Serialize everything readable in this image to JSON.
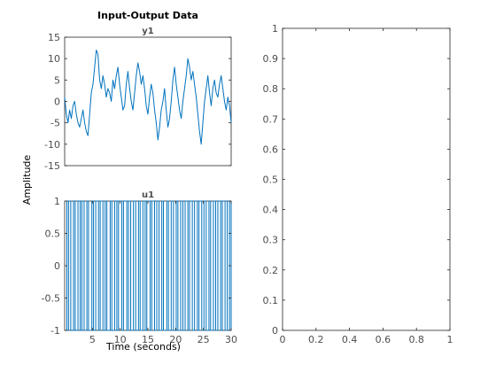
{
  "figure": {
    "title": "Input-Output Data",
    "ylabel": "Amplitude",
    "xlabel": "Time (seconds)"
  },
  "chart_data": [
    {
      "type": "line",
      "title": "y1",
      "xlim": [
        0,
        30
      ],
      "ylim": [
        -15,
        15
      ],
      "yticks": [
        -15,
        -10,
        -5,
        0,
        5,
        10,
        15
      ],
      "color": "#0072bd",
      "series": [
        {
          "x": [
            0,
            0.3,
            0.6,
            0.9,
            1.2,
            1.5,
            1.8,
            2.1,
            2.4,
            2.7,
            3.0,
            3.3,
            3.6,
            3.9,
            4.2,
            4.5,
            4.8,
            5.1,
            5.4,
            5.7,
            6.0,
            6.3,
            6.6,
            6.9,
            7.2,
            7.5,
            7.8,
            8.1,
            8.4,
            8.7,
            9.0,
            9.3,
            9.6,
            9.9,
            10.2,
            10.5,
            10.8,
            11.1,
            11.4,
            11.7,
            12.0,
            12.3,
            12.6,
            12.9,
            13.2,
            13.5,
            13.8,
            14.1,
            14.4,
            14.7,
            15.0,
            15.3,
            15.6,
            15.9,
            16.2,
            16.5,
            16.8,
            17.1,
            17.4,
            17.7,
            18.0,
            18.3,
            18.6,
            18.9,
            19.2,
            19.5,
            19.8,
            20.1,
            20.4,
            20.7,
            21.0,
            21.3,
            21.6,
            21.9,
            22.2,
            22.5,
            22.8,
            23.1,
            23.4,
            23.7,
            24.0,
            24.3,
            24.6,
            24.9,
            25.2,
            25.5,
            25.8,
            26.1,
            26.4,
            26.7,
            27.0,
            27.3,
            27.6,
            27.9,
            28.2,
            28.5,
            28.8,
            29.1,
            29.4,
            29.7,
            30.0
          ],
          "y": [
            1,
            -3,
            -5,
            -2,
            -4,
            -1,
            0,
            -3,
            -5,
            -6,
            -4,
            -2,
            -5,
            -7,
            -8,
            -3,
            2,
            4,
            8,
            12,
            11,
            5,
            3,
            6,
            4,
            1,
            3,
            2,
            0,
            5,
            3,
            6,
            8,
            4,
            1,
            -2,
            -1,
            4,
            7,
            3,
            0,
            -2,
            2,
            6,
            9,
            7,
            4,
            6,
            3,
            -1,
            -3,
            1,
            4,
            2,
            -2,
            -5,
            -9,
            -6,
            -2,
            0,
            3,
            -2,
            -6,
            -4,
            0,
            5,
            8,
            4,
            1,
            -2,
            -4,
            0,
            3,
            6,
            10,
            8,
            5,
            7,
            4,
            1,
            -3,
            -7,
            -10,
            -5,
            0,
            3,
            6,
            2,
            -1,
            3,
            5,
            2,
            1,
            4,
            6,
            3,
            0,
            -2,
            1,
            -1,
            -5
          ]
        }
      ]
    },
    {
      "type": "line",
      "title": "u1",
      "xlim": [
        0,
        30
      ],
      "ylim": [
        -1,
        1
      ],
      "xticks": [
        5,
        10,
        15,
        20,
        25,
        30
      ],
      "yticks": [
        -1,
        -0.5,
        0,
        0.5,
        1
      ],
      "color": "#0072bd",
      "series": [
        {
          "x": [
            0,
            0.4,
            0.7,
            1.1,
            1.6,
            1.9,
            2.4,
            2.8,
            3.1,
            3.5,
            4.0,
            4.3,
            4.9,
            5.2,
            5.6,
            6.1,
            6.4,
            6.9,
            7.3,
            7.6,
            8.2,
            8.5,
            9.0,
            9.4,
            9.7,
            10.3,
            10.6,
            11.2,
            11.5,
            11.9,
            12.4,
            12.8,
            13.3,
            13.6,
            14.1,
            14.5,
            14.8,
            15.4,
            15.7,
            16.2,
            16.6,
            17.0,
            17.5,
            17.8,
            18.4,
            18.7,
            19.2,
            19.6,
            20.1,
            20.4,
            20.9,
            21.3,
            21.7,
            22.2,
            22.5,
            23.0,
            23.4,
            23.9,
            24.2,
            24.7,
            25.1,
            25.5,
            26.0,
            26.3,
            26.8,
            27.2,
            27.6,
            28.1,
            28.4,
            28.9,
            29.3,
            29.7,
            30.0
          ],
          "y": [
            1,
            -1,
            1,
            -1,
            1,
            -1,
            1,
            -1,
            1,
            -1,
            1,
            -1,
            1,
            -1,
            1,
            -1,
            1,
            -1,
            1,
            -1,
            1,
            -1,
            1,
            -1,
            1,
            -1,
            1,
            -1,
            1,
            -1,
            1,
            -1,
            1,
            -1,
            1,
            -1,
            1,
            -1,
            1,
            -1,
            1,
            -1,
            1,
            -1,
            1,
            -1,
            1,
            -1,
            1,
            -1,
            1,
            -1,
            1,
            -1,
            1,
            -1,
            1,
            -1,
            1,
            -1,
            1,
            -1,
            1,
            -1,
            1,
            -1,
            1,
            -1,
            1,
            -1,
            1,
            -1,
            1
          ]
        }
      ]
    },
    {
      "type": "line",
      "title": "",
      "xlim": [
        0,
        1
      ],
      "ylim": [
        0,
        1
      ],
      "xticks": [
        0,
        0.2,
        0.4,
        0.6,
        0.8,
        1
      ],
      "yticks": [
        0,
        0.1,
        0.2,
        0.3,
        0.4,
        0.5,
        0.6,
        0.7,
        0.8,
        0.9,
        1
      ],
      "color": "#0072bd",
      "series": []
    }
  ]
}
